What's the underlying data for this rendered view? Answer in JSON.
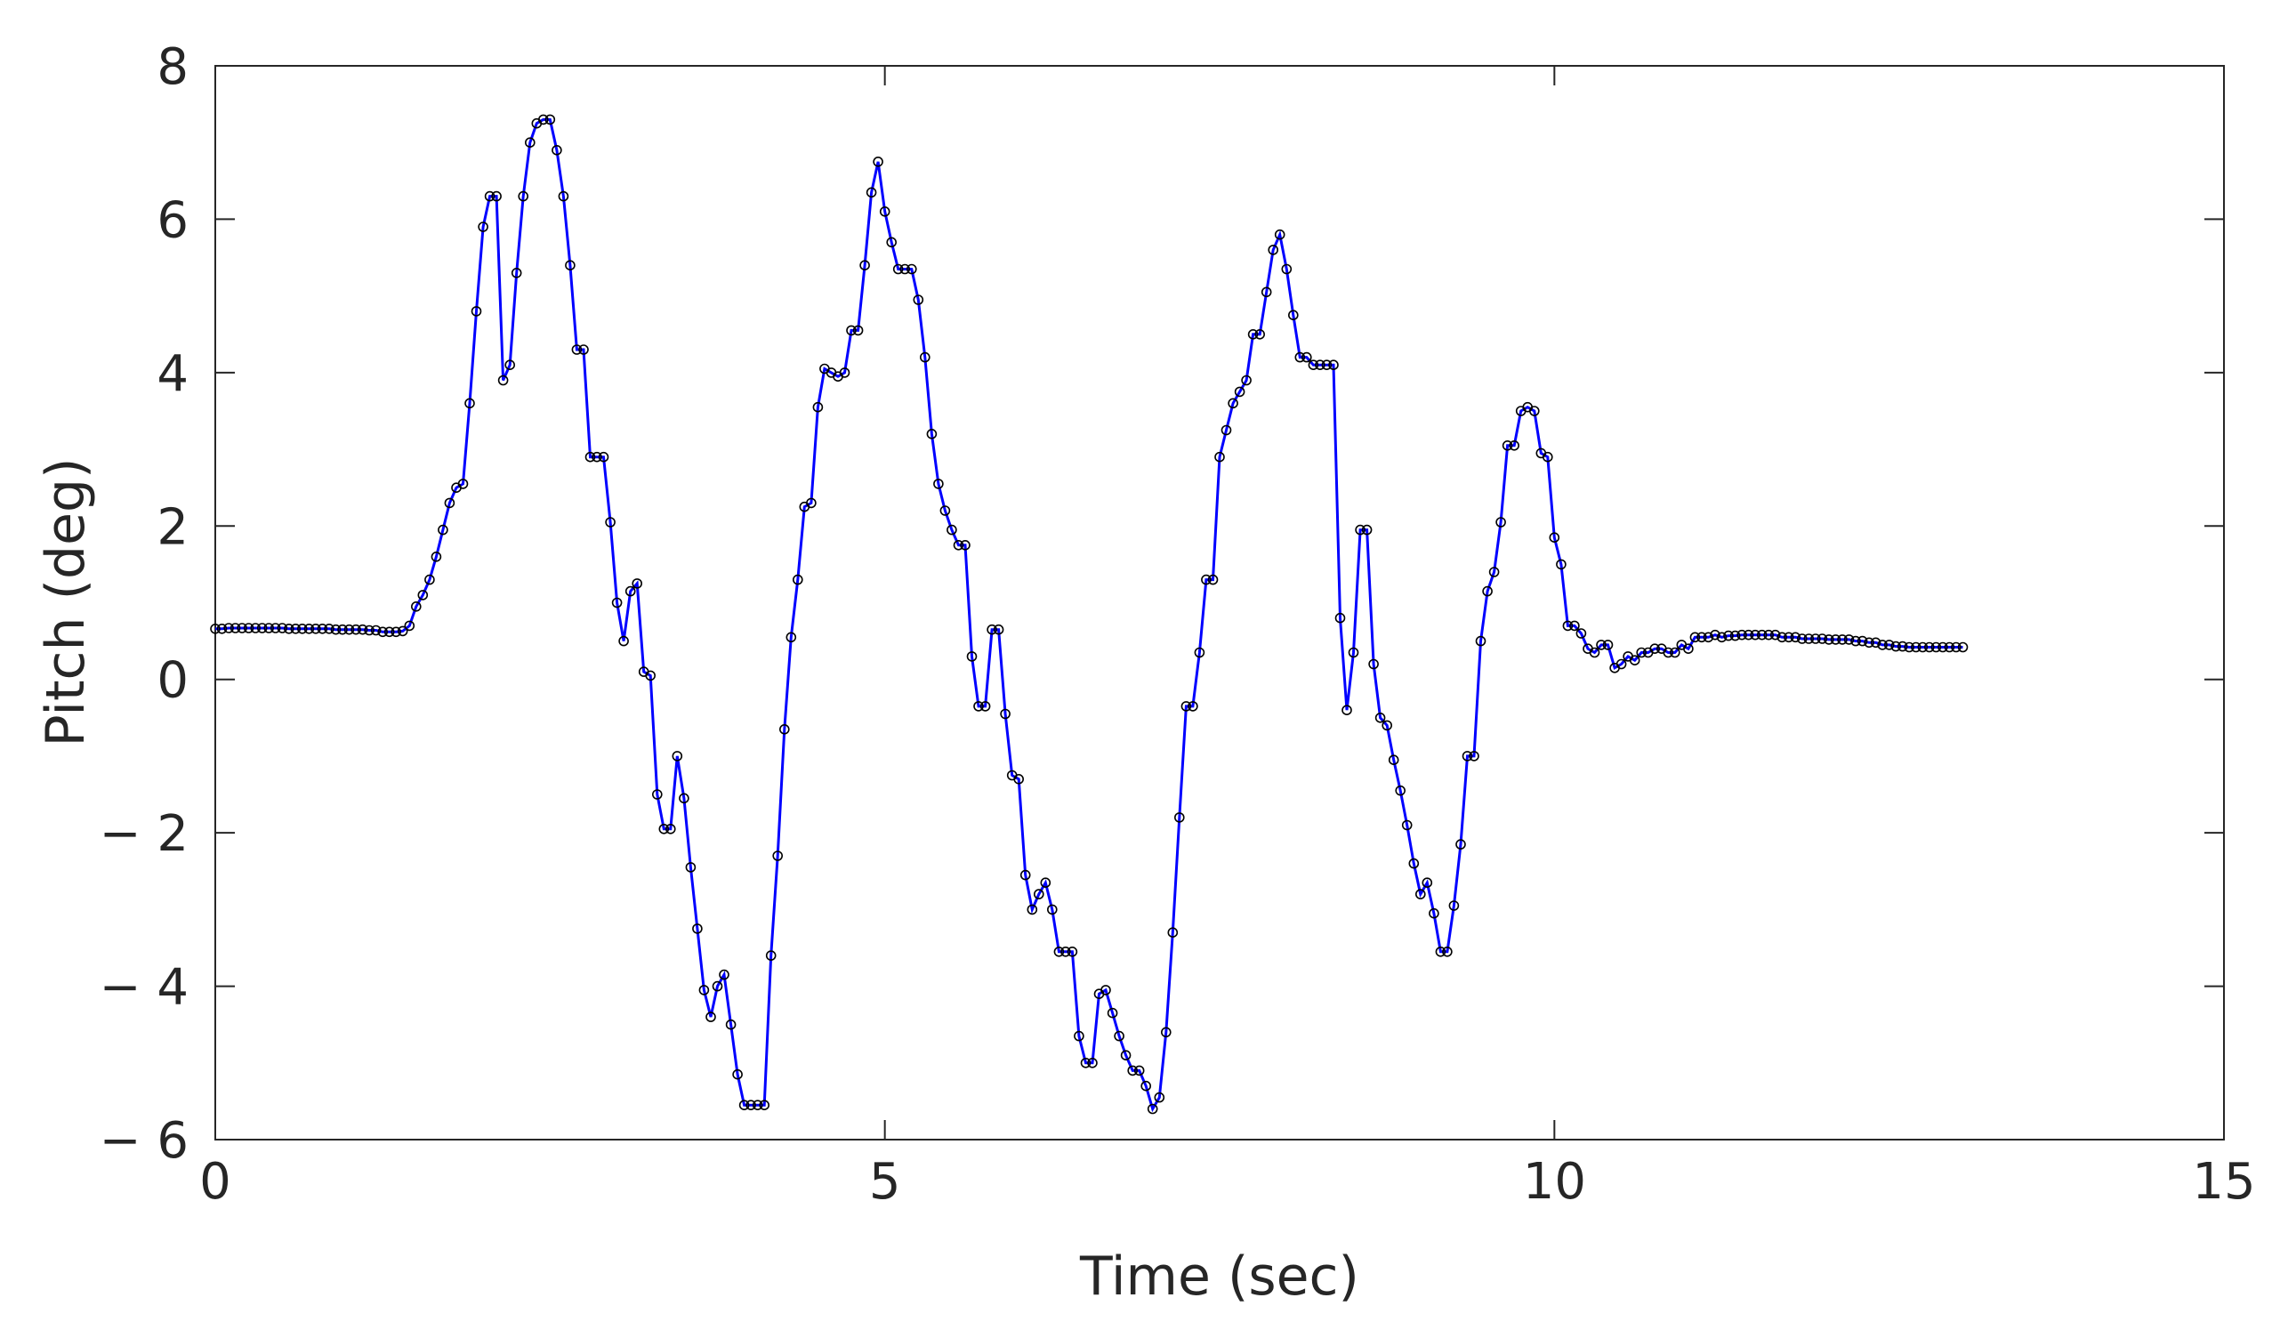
{
  "chart_data": {
    "type": "line",
    "xlabel": "Time (sec)",
    "ylabel": "Pitch (deg)",
    "xlim": [
      0,
      15
    ],
    "ylim": [
      -6,
      8
    ],
    "xticks": [
      0,
      5,
      10,
      15
    ],
    "xtick_labels": [
      "0",
      "5",
      "10",
      "15"
    ],
    "yticks": [
      -6,
      -4,
      -2,
      0,
      2,
      4,
      6,
      8
    ],
    "ytick_labels": [
      "− 6",
      "− 4",
      "− 2",
      "0",
      "2",
      "4",
      "6",
      "8"
    ],
    "grid": false,
    "box": true,
    "series": [
      {
        "color": "#0000ff",
        "marker": "circle",
        "marker_color": "#000000",
        "points": [
          [
            0.0,
            0.66
          ],
          [
            0.05,
            0.66
          ],
          [
            0.1,
            0.67
          ],
          [
            0.15,
            0.67
          ],
          [
            0.2,
            0.67
          ],
          [
            0.25,
            0.67
          ],
          [
            0.3,
            0.67
          ],
          [
            0.35,
            0.67
          ],
          [
            0.4,
            0.67
          ],
          [
            0.45,
            0.67
          ],
          [
            0.5,
            0.67
          ],
          [
            0.55,
            0.66
          ],
          [
            0.6,
            0.66
          ],
          [
            0.65,
            0.66
          ],
          [
            0.7,
            0.66
          ],
          [
            0.75,
            0.66
          ],
          [
            0.8,
            0.66
          ],
          [
            0.85,
            0.66
          ],
          [
            0.9,
            0.65
          ],
          [
            0.95,
            0.65
          ],
          [
            1.0,
            0.65
          ],
          [
            1.05,
            0.65
          ],
          [
            1.1,
            0.65
          ],
          [
            1.15,
            0.64
          ],
          [
            1.2,
            0.64
          ],
          [
            1.25,
            0.62
          ],
          [
            1.3,
            0.62
          ],
          [
            1.35,
            0.62
          ],
          [
            1.4,
            0.63
          ],
          [
            1.45,
            0.7
          ],
          [
            1.5,
            0.95
          ],
          [
            1.55,
            1.1
          ],
          [
            1.6,
            1.3
          ],
          [
            1.65,
            1.6
          ],
          [
            1.7,
            1.95
          ],
          [
            1.75,
            2.3
          ],
          [
            1.8,
            2.5
          ],
          [
            1.85,
            2.55
          ],
          [
            1.9,
            3.6
          ],
          [
            1.95,
            4.8
          ],
          [
            2.0,
            5.9
          ],
          [
            2.05,
            6.3
          ],
          [
            2.1,
            6.3
          ],
          [
            2.15,
            3.9
          ],
          [
            2.2,
            4.1
          ],
          [
            2.25,
            5.3
          ],
          [
            2.3,
            6.3
          ],
          [
            2.35,
            7.0
          ],
          [
            2.4,
            7.25
          ],
          [
            2.45,
            7.3
          ],
          [
            2.5,
            7.3
          ],
          [
            2.55,
            6.9
          ],
          [
            2.6,
            6.3
          ],
          [
            2.65,
            5.4
          ],
          [
            2.7,
            4.3
          ],
          [
            2.75,
            4.3
          ],
          [
            2.8,
            2.9
          ],
          [
            2.85,
            2.9
          ],
          [
            2.9,
            2.9
          ],
          [
            2.95,
            2.05
          ],
          [
            3.0,
            1.0
          ],
          [
            3.05,
            0.5
          ],
          [
            3.1,
            1.15
          ],
          [
            3.15,
            1.25
          ],
          [
            3.2,
            0.1
          ],
          [
            3.25,
            0.05
          ],
          [
            3.3,
            -1.5
          ],
          [
            3.35,
            -1.95
          ],
          [
            3.4,
            -1.95
          ],
          [
            3.45,
            -1.0
          ],
          [
            3.5,
            -1.55
          ],
          [
            3.55,
            -2.45
          ],
          [
            3.6,
            -3.25
          ],
          [
            3.65,
            -4.05
          ],
          [
            3.7,
            -4.4
          ],
          [
            3.75,
            -4.0
          ],
          [
            3.8,
            -3.85
          ],
          [
            3.85,
            -4.5
          ],
          [
            3.9,
            -5.15
          ],
          [
            3.95,
            -5.55
          ],
          [
            4.0,
            -5.55
          ],
          [
            4.05,
            -5.55
          ],
          [
            4.1,
            -5.55
          ],
          [
            4.15,
            -3.6
          ],
          [
            4.2,
            -2.3
          ],
          [
            4.25,
            -0.65
          ],
          [
            4.3,
            0.55
          ],
          [
            4.35,
            1.3
          ],
          [
            4.4,
            2.25
          ],
          [
            4.45,
            2.3
          ],
          [
            4.5,
            3.55
          ],
          [
            4.55,
            4.05
          ],
          [
            4.6,
            4.0
          ],
          [
            4.65,
            3.95
          ],
          [
            4.7,
            4.0
          ],
          [
            4.75,
            4.55
          ],
          [
            4.8,
            4.55
          ],
          [
            4.85,
            5.4
          ],
          [
            4.9,
            6.35
          ],
          [
            4.95,
            6.75
          ],
          [
            5.0,
            6.1
          ],
          [
            5.05,
            5.7
          ],
          [
            5.1,
            5.35
          ],
          [
            5.15,
            5.35
          ],
          [
            5.2,
            5.35
          ],
          [
            5.25,
            4.95
          ],
          [
            5.3,
            4.2
          ],
          [
            5.35,
            3.2
          ],
          [
            5.4,
            2.55
          ],
          [
            5.45,
            2.2
          ],
          [
            5.5,
            1.95
          ],
          [
            5.55,
            1.75
          ],
          [
            5.6,
            1.75
          ],
          [
            5.65,
            0.3
          ],
          [
            5.7,
            -0.35
          ],
          [
            5.75,
            -0.35
          ],
          [
            5.8,
            0.65
          ],
          [
            5.85,
            0.65
          ],
          [
            5.9,
            -0.45
          ],
          [
            5.95,
            -1.25
          ],
          [
            6.0,
            -1.3
          ],
          [
            6.05,
            -2.55
          ],
          [
            6.1,
            -3.0
          ],
          [
            6.15,
            -2.8
          ],
          [
            6.2,
            -2.65
          ],
          [
            6.25,
            -3.0
          ],
          [
            6.3,
            -3.55
          ],
          [
            6.35,
            -3.55
          ],
          [
            6.4,
            -3.55
          ],
          [
            6.45,
            -4.65
          ],
          [
            6.5,
            -5.0
          ],
          [
            6.55,
            -5.0
          ],
          [
            6.6,
            -4.1
          ],
          [
            6.65,
            -4.05
          ],
          [
            6.7,
            -4.35
          ],
          [
            6.75,
            -4.65
          ],
          [
            6.8,
            -4.9
          ],
          [
            6.85,
            -5.1
          ],
          [
            6.9,
            -5.1
          ],
          [
            6.95,
            -5.3
          ],
          [
            7.0,
            -5.6
          ],
          [
            7.05,
            -5.45
          ],
          [
            7.1,
            -4.6
          ],
          [
            7.15,
            -3.3
          ],
          [
            7.2,
            -1.8
          ],
          [
            7.25,
            -0.35
          ],
          [
            7.3,
            -0.35
          ],
          [
            7.35,
            0.35
          ],
          [
            7.4,
            1.3
          ],
          [
            7.45,
            1.3
          ],
          [
            7.5,
            2.9
          ],
          [
            7.55,
            3.25
          ],
          [
            7.6,
            3.6
          ],
          [
            7.65,
            3.75
          ],
          [
            7.7,
            3.9
          ],
          [
            7.75,
            4.5
          ],
          [
            7.8,
            4.5
          ],
          [
            7.85,
            5.05
          ],
          [
            7.9,
            5.6
          ],
          [
            7.95,
            5.8
          ],
          [
            8.0,
            5.35
          ],
          [
            8.05,
            4.75
          ],
          [
            8.1,
            4.2
          ],
          [
            8.15,
            4.2
          ],
          [
            8.2,
            4.1
          ],
          [
            8.25,
            4.1
          ],
          [
            8.3,
            4.1
          ],
          [
            8.35,
            4.1
          ],
          [
            8.4,
            0.8
          ],
          [
            8.45,
            -0.4
          ],
          [
            8.5,
            0.35
          ],
          [
            8.55,
            1.95
          ],
          [
            8.6,
            1.95
          ],
          [
            8.65,
            0.2
          ],
          [
            8.7,
            -0.5
          ],
          [
            8.75,
            -0.6
          ],
          [
            8.8,
            -1.05
          ],
          [
            8.85,
            -1.45
          ],
          [
            8.9,
            -1.9
          ],
          [
            8.95,
            -2.4
          ],
          [
            9.0,
            -2.8
          ],
          [
            9.05,
            -2.65
          ],
          [
            9.1,
            -3.05
          ],
          [
            9.15,
            -3.55
          ],
          [
            9.2,
            -3.55
          ],
          [
            9.25,
            -2.95
          ],
          [
            9.3,
            -2.15
          ],
          [
            9.35,
            -1.0
          ],
          [
            9.4,
            -1.0
          ],
          [
            9.45,
            0.5
          ],
          [
            9.5,
            1.15
          ],
          [
            9.55,
            1.4
          ],
          [
            9.6,
            2.05
          ],
          [
            9.65,
            3.05
          ],
          [
            9.7,
            3.05
          ],
          [
            9.75,
            3.5
          ],
          [
            9.8,
            3.55
          ],
          [
            9.85,
            3.5
          ],
          [
            9.9,
            2.95
          ],
          [
            9.95,
            2.9
          ],
          [
            10.0,
            1.85
          ],
          [
            10.05,
            1.5
          ],
          [
            10.1,
            0.7
          ],
          [
            10.15,
            0.7
          ],
          [
            10.2,
            0.6
          ],
          [
            10.25,
            0.4
          ],
          [
            10.3,
            0.35
          ],
          [
            10.35,
            0.45
          ],
          [
            10.4,
            0.45
          ],
          [
            10.45,
            0.15
          ],
          [
            10.5,
            0.2
          ],
          [
            10.55,
            0.3
          ],
          [
            10.6,
            0.25
          ],
          [
            10.65,
            0.35
          ],
          [
            10.7,
            0.35
          ],
          [
            10.75,
            0.4
          ],
          [
            10.8,
            0.4
          ],
          [
            10.85,
            0.35
          ],
          [
            10.9,
            0.35
          ],
          [
            10.95,
            0.45
          ],
          [
            11.0,
            0.4
          ],
          [
            11.05,
            0.55
          ],
          [
            11.1,
            0.55
          ],
          [
            11.15,
            0.55
          ],
          [
            11.2,
            0.58
          ],
          [
            11.25,
            0.55
          ],
          [
            11.3,
            0.57
          ],
          [
            11.35,
            0.57
          ],
          [
            11.4,
            0.58
          ],
          [
            11.45,
            0.58
          ],
          [
            11.5,
            0.58
          ],
          [
            11.55,
            0.58
          ],
          [
            11.6,
            0.58
          ],
          [
            11.65,
            0.58
          ],
          [
            11.7,
            0.55
          ],
          [
            11.75,
            0.55
          ],
          [
            11.8,
            0.55
          ],
          [
            11.85,
            0.53
          ],
          [
            11.9,
            0.53
          ],
          [
            11.95,
            0.53
          ],
          [
            12.0,
            0.53
          ],
          [
            12.05,
            0.52
          ],
          [
            12.1,
            0.52
          ],
          [
            12.15,
            0.52
          ],
          [
            12.2,
            0.52
          ],
          [
            12.25,
            0.5
          ],
          [
            12.3,
            0.5
          ],
          [
            12.35,
            0.48
          ],
          [
            12.4,
            0.48
          ],
          [
            12.45,
            0.45
          ],
          [
            12.5,
            0.45
          ],
          [
            12.55,
            0.43
          ],
          [
            12.6,
            0.43
          ],
          [
            12.65,
            0.42
          ],
          [
            12.7,
            0.42
          ],
          [
            12.75,
            0.42
          ],
          [
            12.8,
            0.42
          ],
          [
            12.85,
            0.42
          ],
          [
            12.9,
            0.42
          ],
          [
            12.95,
            0.42
          ],
          [
            13.0,
            0.42
          ],
          [
            13.05,
            0.42
          ]
        ]
      }
    ]
  }
}
